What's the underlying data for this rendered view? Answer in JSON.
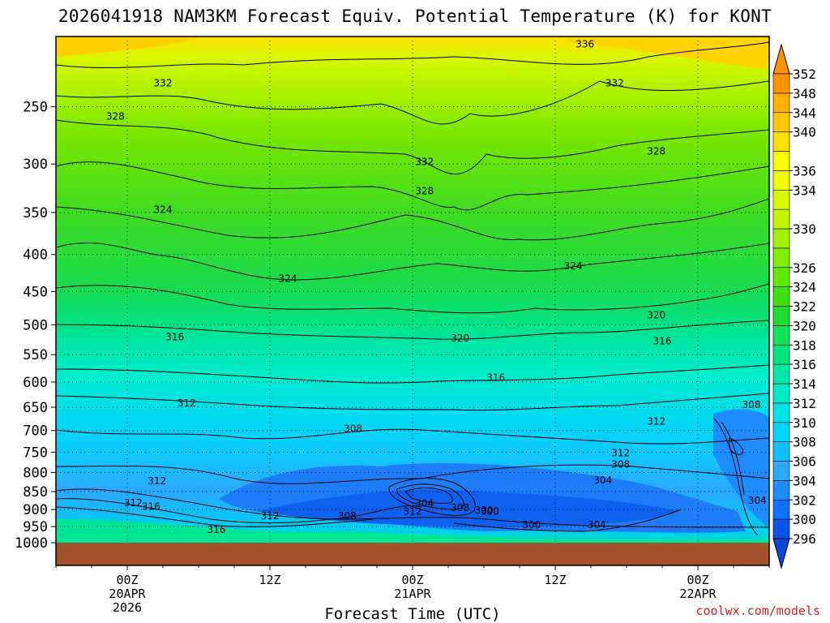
{
  "title": "2026041918 NAM3KM Forecast Equiv. Potential Temperature (K) for KONT",
  "xlabel": "Forecast Time (UTC)",
  "credit": "coolwx.com/models",
  "colors": {
    "ground": "#a0522d",
    "scale": [
      "#1070ff",
      "#1e8cff",
      "#2aa8ff",
      "#00c4ff",
      "#00e0f0",
      "#00ecc8",
      "#00e896",
      "#00e060",
      "#20dc20",
      "#60e800",
      "#a0f000",
      "#d8f800",
      "#ffff00",
      "#ffd000",
      "#ffb000",
      "#ff9000"
    ]
  },
  "chart_data": {
    "type": "heatmap",
    "title": "2026041918 NAM3KM Forecast Equiv. Potential Temperature (K) for KONT",
    "xlabel": "Forecast Time (UTC)",
    "ylabel": "",
    "y_ticks": [
      250,
      300,
      350,
      400,
      450,
      500,
      550,
      600,
      650,
      700,
      750,
      800,
      850,
      900,
      950,
      1000
    ],
    "x_ticks": [
      {
        "label": [
          "00Z",
          "20APR",
          "2026"
        ],
        "hour": 6
      },
      {
        "label": [
          "12Z"
        ],
        "hour": 18
      },
      {
        "label": [
          "00Z",
          "21APR"
        ],
        "hour": 30
      },
      {
        "label": [
          "12Z"
        ],
        "hour": 42
      },
      {
        "label": [
          "00Z",
          "22APR"
        ],
        "hour": 54
      }
    ],
    "x_range_hours": [
      0,
      60
    ],
    "y_range_hPa": [
      200,
      1000
    ],
    "colorbar": [
      296,
      300,
      302,
      304,
      306,
      308,
      310,
      312,
      314,
      316,
      318,
      320,
      322,
      324,
      326,
      328,
      330,
      332,
      334,
      336,
      338,
      340,
      344,
      348,
      352
    ],
    "colorbar_labels": [
      296,
      300,
      302,
      304,
      306,
      308,
      310,
      312,
      314,
      316,
      318,
      320,
      322,
      324,
      326,
      330,
      334,
      336,
      340,
      344,
      348,
      352
    ],
    "contour_labels": [
      {
        "value": "336",
        "hour": 44.5,
        "p": 205
      },
      {
        "value": "332",
        "hour": 9,
        "p": 232
      },
      {
        "value": "332",
        "hour": 47,
        "p": 232
      },
      {
        "value": "328",
        "hour": 5,
        "p": 258
      },
      {
        "value": "328",
        "hour": 50.5,
        "p": 288
      },
      {
        "value": "332",
        "hour": 31,
        "p": 298
      },
      {
        "value": "328",
        "hour": 31,
        "p": 327
      },
      {
        "value": "324",
        "hour": 9,
        "p": 347
      },
      {
        "value": "324",
        "hour": 19.5,
        "p": 432
      },
      {
        "value": "324",
        "hour": 43.5,
        "p": 415
      },
      {
        "value": "320",
        "hour": 50.5,
        "p": 485
      },
      {
        "value": "316",
        "hour": 10,
        "p": 520
      },
      {
        "value": "320",
        "hour": 34,
        "p": 522
      },
      {
        "value": "316",
        "hour": 51,
        "p": 527
      },
      {
        "value": "316",
        "hour": 37,
        "p": 592
      },
      {
        "value": "312",
        "hour": 11,
        "p": 642
      },
      {
        "value": "308",
        "hour": 58.5,
        "p": 645
      },
      {
        "value": "312",
        "hour": 50.5,
        "p": 680
      },
      {
        "value": "308",
        "hour": 25,
        "p": 696
      },
      {
        "value": "312",
        "hour": 47.5,
        "p": 752
      },
      {
        "value": "308",
        "hour": 47.5,
        "p": 780
      },
      {
        "value": "304",
        "hour": 46,
        "p": 820
      },
      {
        "value": "312",
        "hour": 8.5,
        "p": 822
      },
      {
        "value": "312",
        "hour": 6.5,
        "p": 881
      },
      {
        "value": "316",
        "hour": 8,
        "p": 892
      },
      {
        "value": "312",
        "hour": 18,
        "p": 918
      },
      {
        "value": "308",
        "hour": 24.5,
        "p": 918
      },
      {
        "value": "304",
        "hour": 31,
        "p": 882
      },
      {
        "value": "312",
        "hour": 30,
        "p": 906
      },
      {
        "value": "308",
        "hour": 34,
        "p": 895
      },
      {
        "value": "300",
        "hour": 36,
        "p": 902
      },
      {
        "value": "300",
        "hour": 40,
        "p": 945
      },
      {
        "value": "304",
        "hour": 45.5,
        "p": 945
      },
      {
        "value": "316",
        "hour": 13.5,
        "p": 960
      },
      {
        "value": "304",
        "hour": 59,
        "p": 875
      },
      {
        "value": "300",
        "hour": 36.5,
        "p": 905
      }
    ]
  }
}
